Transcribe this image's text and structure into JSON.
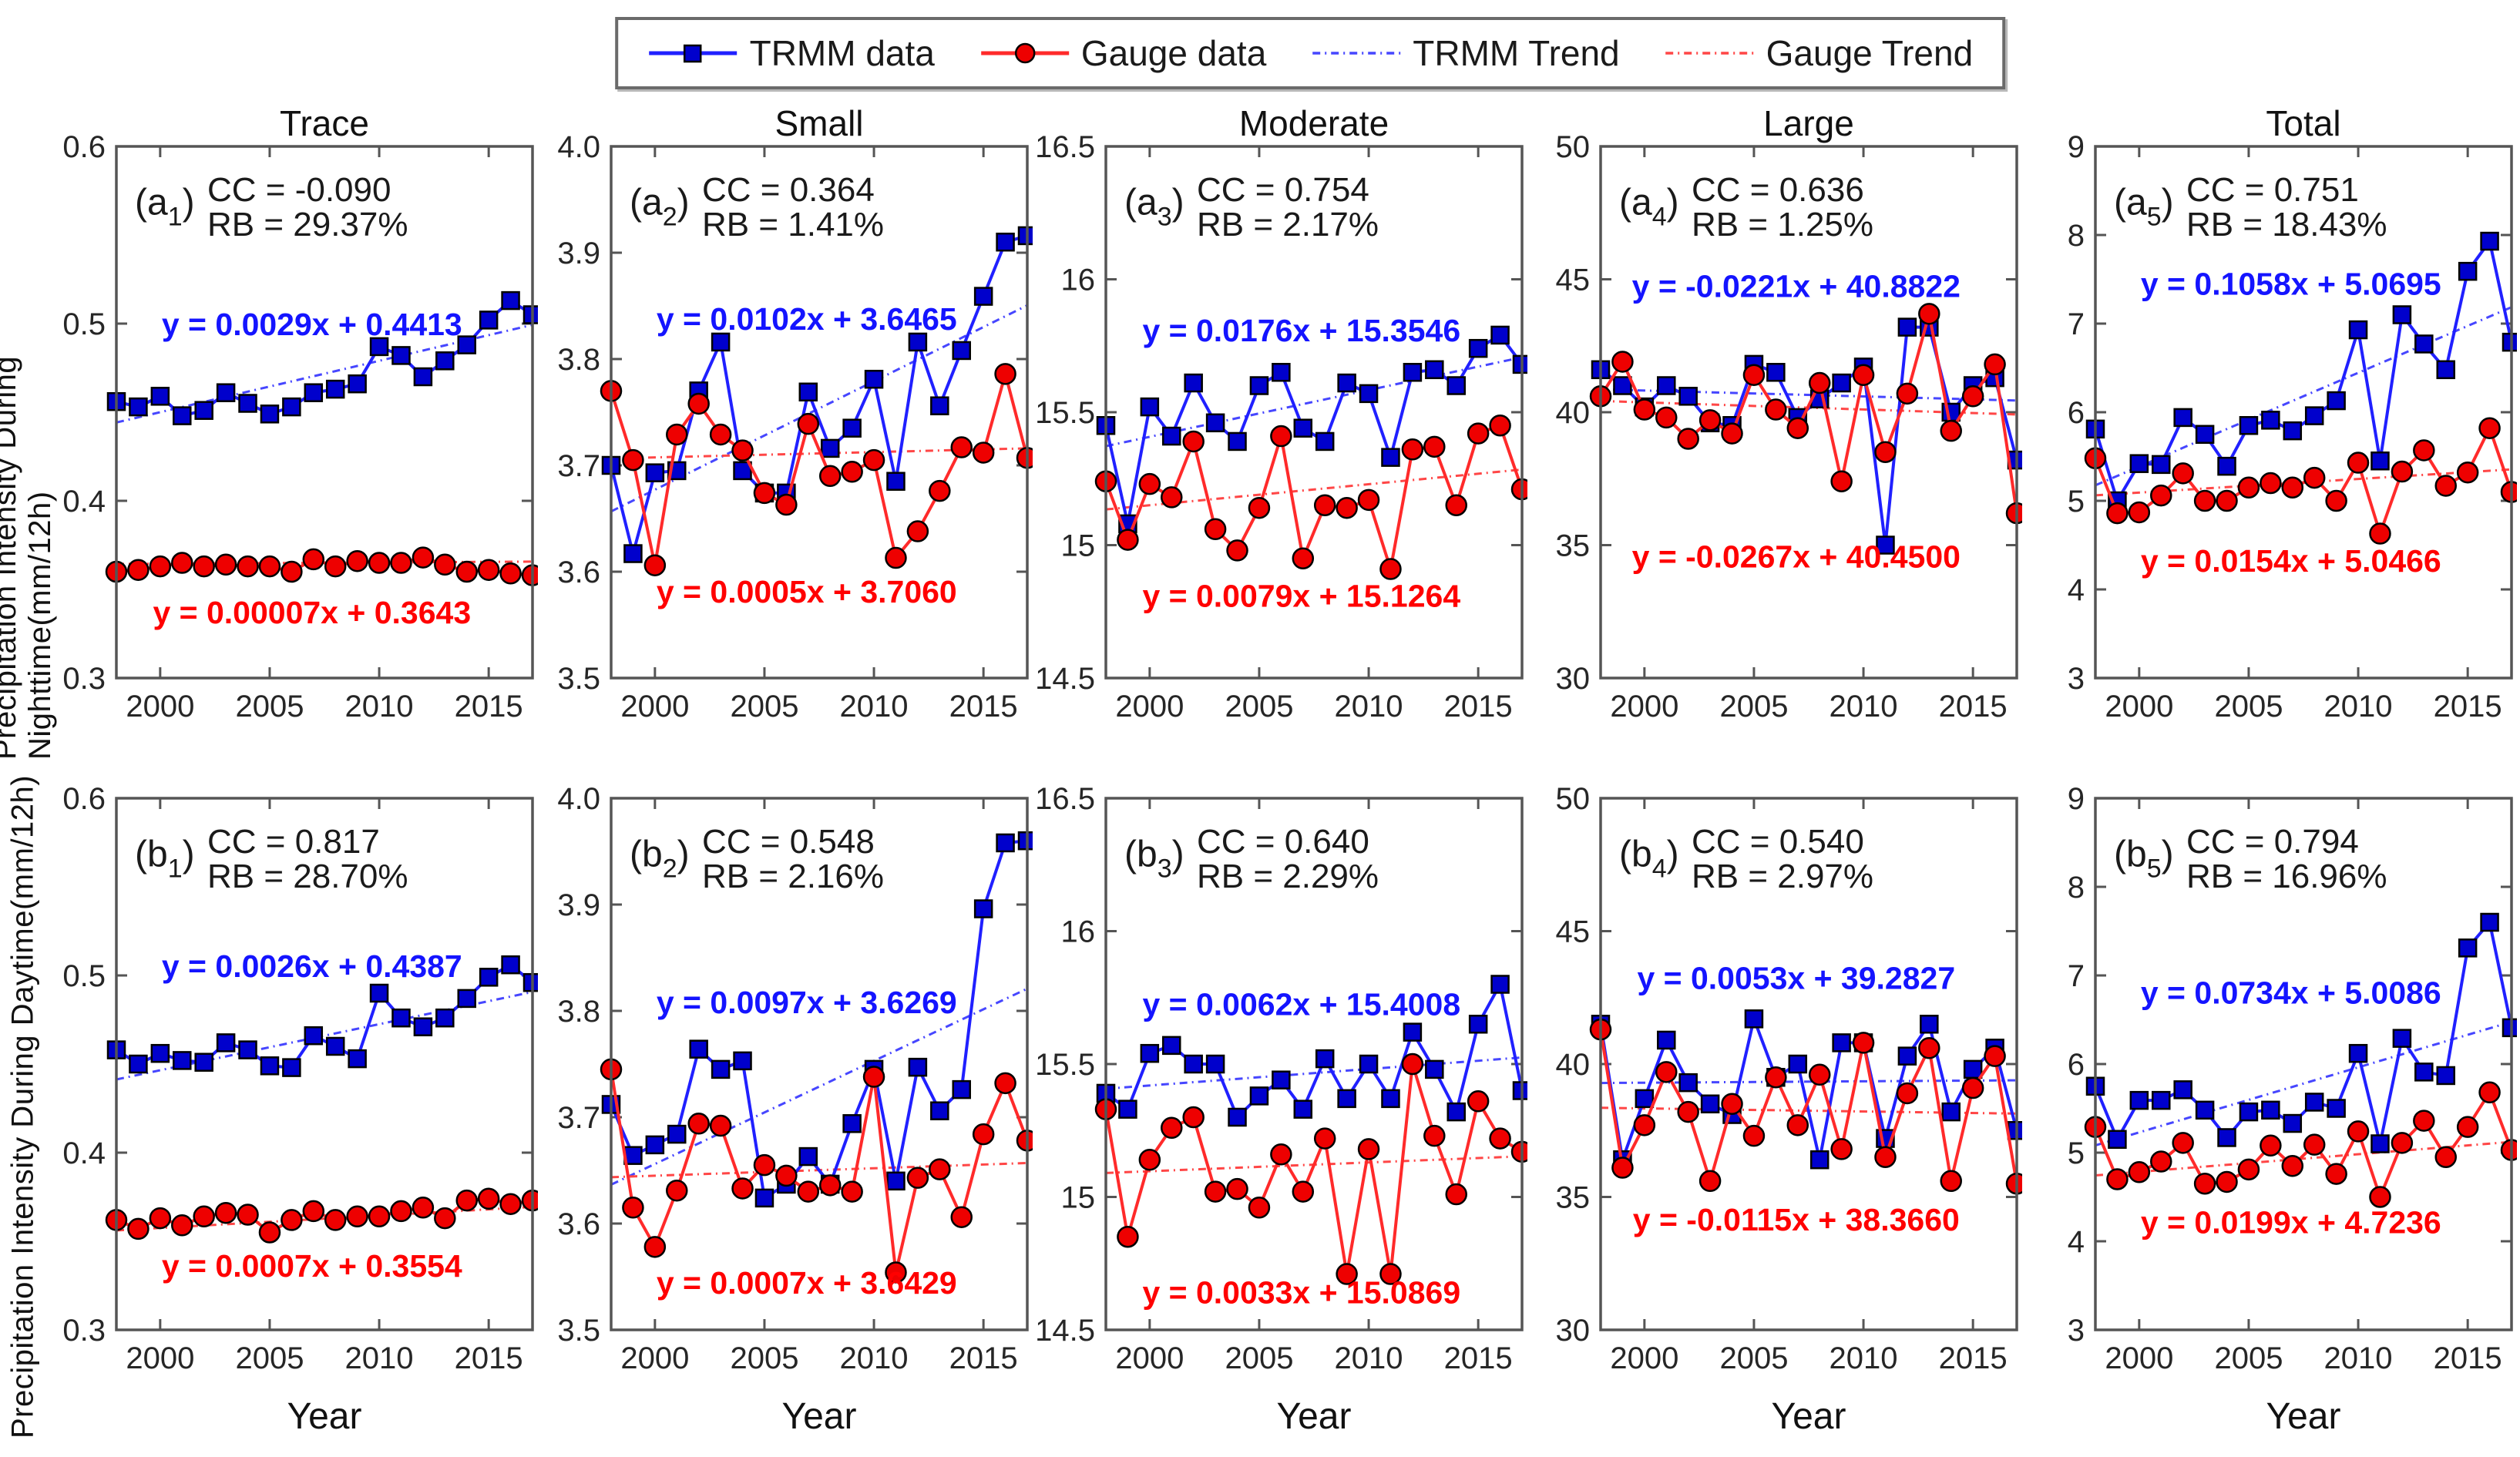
{
  "page": {
    "ylabel_nighttime": "Precipitation Intensity During Nighttime(mm/12h)",
    "ylabel_daytime": "Precipitation Intensity During Daytime(mm/12h)",
    "xlabel": "Year"
  },
  "colors": {
    "trmm_line": "#2020ff",
    "trmm_marker": "#0000cc",
    "trmm_trend": "#4646ff",
    "trmm_text": "#1414ff",
    "gauge_line": "#ff2a2a",
    "gauge_marker": "#ee0000",
    "gauge_trend": "#ff4646",
    "gauge_text": "#ff0000",
    "axis": "#555555",
    "tick_text": "#262626",
    "annotation_text": "#1a1a1a"
  },
  "legend": {
    "items": [
      {
        "label": "TRMM data",
        "type": "line-square"
      },
      {
        "label": "Gauge data",
        "type": "line-circle"
      },
      {
        "label": "TRMM Trend",
        "type": "trend-blue"
      },
      {
        "label": "Gauge Trend",
        "type": "trend-red"
      }
    ]
  },
  "chart_data": {
    "type": "line",
    "x": [
      1998,
      1999,
      2000,
      2001,
      2002,
      2003,
      2004,
      2005,
      2006,
      2007,
      2008,
      2009,
      2010,
      2011,
      2012,
      2013,
      2014,
      2015,
      2016,
      2017
    ],
    "xlim": [
      1998,
      2017
    ],
    "xticks": [
      "2000",
      "2005",
      "2010",
      "2015"
    ],
    "series_names": [
      "TRMM data",
      "Gauge data"
    ],
    "panels": [
      {
        "id": "a1",
        "row": 0,
        "col": 0,
        "title": "Trace",
        "tag": "a",
        "sub": "1",
        "cc": "CC = -0.090",
        "rb": "RB = 29.37%",
        "trmm_eq": "y = 0.0029x + 0.4413",
        "gauge_eq": "y = 0.00007x + 0.3643",
        "trmm_trend": {
          "slope": 0.0029,
          "intercept": 0.4413
        },
        "gauge_trend": {
          "slope": 7e-05,
          "intercept": 0.3643
        },
        "ylim": [
          0.3,
          0.6
        ],
        "yticks": [
          "0.3",
          "0.4",
          "0.5",
          "0.6"
        ],
        "eq_pos": {
          "trmm": 0.355,
          "gauge": 0.897
        },
        "trmm": [
          0.456,
          0.453,
          0.459,
          0.448,
          0.451,
          0.461,
          0.455,
          0.449,
          0.453,
          0.461,
          0.463,
          0.466,
          0.487,
          0.482,
          0.47,
          0.479,
          0.488,
          0.502,
          0.513,
          0.505
        ],
        "gauge": [
          0.36,
          0.361,
          0.363,
          0.365,
          0.363,
          0.364,
          0.363,
          0.363,
          0.36,
          0.367,
          0.363,
          0.366,
          0.365,
          0.365,
          0.368,
          0.364,
          0.36,
          0.361,
          0.359,
          0.358
        ]
      },
      {
        "id": "a2",
        "row": 0,
        "col": 1,
        "title": "Small",
        "tag": "a",
        "sub": "2",
        "cc": "CC = 0.364",
        "rb": "RB = 1.41%",
        "trmm_eq": "y = 0.0102x + 3.6465",
        "gauge_eq": "y = 0.0005x + 3.7060",
        "trmm_trend": {
          "slope": 0.0102,
          "intercept": 3.6465
        },
        "gauge_trend": {
          "slope": 0.0005,
          "intercept": 3.706
        },
        "ylim": [
          3.5,
          4.0
        ],
        "yticks": [
          "3.5",
          "3.6",
          "3.7",
          "3.8",
          "3.9",
          "4.0"
        ],
        "eq_pos": {
          "trmm": 0.345,
          "gauge": 0.858
        },
        "trmm": [
          3.7,
          3.617,
          3.693,
          3.695,
          3.77,
          3.816,
          3.695,
          3.674,
          3.674,
          3.769,
          3.716,
          3.735,
          3.781,
          3.685,
          3.816,
          3.756,
          3.808,
          3.859,
          3.91,
          3.916
        ],
        "gauge": [
          3.77,
          3.705,
          3.606,
          3.729,
          3.758,
          3.729,
          3.714,
          3.674,
          3.663,
          3.739,
          3.69,
          3.694,
          3.705,
          3.613,
          3.638,
          3.676,
          3.717,
          3.712,
          3.786,
          3.707
        ]
      },
      {
        "id": "a3",
        "row": 0,
        "col": 2,
        "title": "Moderate",
        "tag": "a",
        "sub": "3",
        "cc": "CC = 0.754",
        "rb": "RB = 2.17%",
        "trmm_eq": "y = 0.0176x + 15.3546",
        "gauge_eq": "y = 0.0079x + 15.1264",
        "trmm_trend": {
          "slope": 0.0176,
          "intercept": 15.3546
        },
        "gauge_trend": {
          "slope": 0.0079,
          "intercept": 15.1264
        },
        "ylim": [
          14.5,
          16.5
        ],
        "yticks": [
          "14.5",
          "15",
          "15.5",
          "16",
          "16.5"
        ],
        "eq_pos": {
          "trmm": 0.367,
          "gauge": 0.866
        },
        "trmm": [
          15.45,
          15.08,
          15.52,
          15.41,
          15.61,
          15.46,
          15.39,
          15.6,
          15.65,
          15.44,
          15.39,
          15.61,
          15.57,
          15.33,
          15.65,
          15.66,
          15.6,
          15.74,
          15.79,
          15.68
        ],
        "gauge": [
          15.24,
          15.02,
          15.23,
          15.18,
          15.39,
          15.06,
          14.98,
          15.14,
          15.41,
          14.95,
          15.15,
          15.14,
          15.17,
          14.91,
          15.36,
          15.37,
          15.15,
          15.42,
          15.45,
          15.21
        ]
      },
      {
        "id": "a4",
        "row": 0,
        "col": 3,
        "title": "Large",
        "tag": "a",
        "sub": "4",
        "cc": "CC = 0.636",
        "rb": "RB = 1.25%",
        "trmm_eq": "y = -0.0221x + 40.8822",
        "gauge_eq": "y = -0.0267x + 40.4500",
        "trmm_trend": {
          "slope": -0.0221,
          "intercept": 40.8822
        },
        "gauge_trend": {
          "slope": -0.0267,
          "intercept": 40.45
        },
        "ylim": [
          30,
          50
        ],
        "yticks": [
          "30",
          "35",
          "40",
          "45",
          "50"
        ],
        "eq_pos": {
          "trmm": 0.283,
          "gauge": 0.792
        },
        "trmm": [
          41.6,
          41.0,
          40.2,
          41.0,
          40.6,
          39.6,
          39.5,
          41.8,
          41.5,
          39.8,
          40.5,
          41.1,
          41.7,
          35.0,
          43.2,
          43.2,
          40.0,
          41.0,
          41.3,
          38.2
        ],
        "gauge": [
          40.6,
          41.9,
          40.1,
          39.8,
          39.0,
          39.7,
          39.2,
          41.4,
          40.1,
          39.4,
          41.1,
          37.4,
          41.4,
          38.5,
          40.7,
          43.7,
          39.3,
          40.6,
          41.8,
          36.2
        ]
      },
      {
        "id": "a5",
        "row": 0,
        "col": 4,
        "title": "Total",
        "tag": "a",
        "sub": "5",
        "cc": "CC = 0.751",
        "rb": "RB = 18.43%",
        "trmm_eq": "y = 0.1058x + 5.0695",
        "gauge_eq": "y = 0.0154x + 5.0466",
        "trmm_trend": {
          "slope": 0.1058,
          "intercept": 5.0695
        },
        "gauge_trend": {
          "slope": 0.0154,
          "intercept": 5.0466
        },
        "ylim": [
          3,
          9
        ],
        "yticks": [
          "3",
          "4",
          "5",
          "6",
          "7",
          "8",
          "9"
        ],
        "eq_pos": {
          "trmm": 0.279,
          "gauge": 0.8
        },
        "trmm": [
          5.81,
          5.0,
          5.42,
          5.41,
          5.94,
          5.75,
          5.39,
          5.85,
          5.91,
          5.79,
          5.96,
          6.13,
          6.93,
          5.45,
          7.1,
          6.77,
          6.48,
          7.59,
          7.93,
          6.79
        ],
        "gauge": [
          5.48,
          4.86,
          4.87,
          5.06,
          5.31,
          5.0,
          5.0,
          5.15,
          5.2,
          5.15,
          5.26,
          5.0,
          5.43,
          4.63,
          5.33,
          5.57,
          5.17,
          5.32,
          5.82,
          5.1
        ]
      },
      {
        "id": "b1",
        "row": 1,
        "col": 0,
        "title": "",
        "tag": "b",
        "sub": "1",
        "cc": "CC = 0.817",
        "rb": "RB = 28.70%",
        "trmm_eq": "y = 0.0026x + 0.4387",
        "gauge_eq": "y = 0.0007x + 0.3554",
        "trmm_trend": {
          "slope": 0.0026,
          "intercept": 0.4387
        },
        "gauge_trend": {
          "slope": 0.0007,
          "intercept": 0.3554
        },
        "ylim": [
          0.3,
          0.6
        ],
        "yticks": [
          "0.3",
          "0.4",
          "0.5",
          "0.6"
        ],
        "eq_pos": {
          "trmm": 0.336,
          "gauge": 0.9
        },
        "trmm": [
          0.458,
          0.45,
          0.456,
          0.452,
          0.451,
          0.462,
          0.458,
          0.449,
          0.448,
          0.466,
          0.46,
          0.453,
          0.49,
          0.476,
          0.471,
          0.476,
          0.487,
          0.499,
          0.506,
          0.496
        ],
        "gauge": [
          0.362,
          0.357,
          0.363,
          0.359,
          0.364,
          0.366,
          0.365,
          0.355,
          0.362,
          0.367,
          0.362,
          0.364,
          0.364,
          0.367,
          0.369,
          0.363,
          0.373,
          0.374,
          0.371,
          0.373
        ]
      },
      {
        "id": "b2",
        "row": 1,
        "col": 1,
        "title": "",
        "tag": "b",
        "sub": "2",
        "cc": "CC = 0.548",
        "rb": "RB = 2.16%",
        "trmm_eq": "y = 0.0097x + 3.6269",
        "gauge_eq": "y = 0.0007x + 3.6429",
        "trmm_trend": {
          "slope": 0.0097,
          "intercept": 3.6269
        },
        "gauge_trend": {
          "slope": 0.0007,
          "intercept": 3.6429
        },
        "ylim": [
          3.5,
          4.0
        ],
        "yticks": [
          "3.5",
          "3.6",
          "3.7",
          "3.8",
          "3.9",
          "4.0"
        ],
        "eq_pos": {
          "trmm": 0.404,
          "gauge": 0.932
        },
        "trmm": [
          3.712,
          3.664,
          3.674,
          3.684,
          3.764,
          3.745,
          3.753,
          3.624,
          3.637,
          3.663,
          3.637,
          3.694,
          3.745,
          3.64,
          3.747,
          3.706,
          3.726,
          3.896,
          3.958,
          3.96
        ],
        "gauge": [
          3.745,
          3.615,
          3.578,
          3.631,
          3.694,
          3.692,
          3.633,
          3.655,
          3.645,
          3.63,
          3.636,
          3.63,
          3.738,
          3.554,
          3.643,
          3.651,
          3.606,
          3.684,
          3.732,
          3.678
        ]
      },
      {
        "id": "b3",
        "row": 1,
        "col": 2,
        "title": "",
        "tag": "b",
        "sub": "3",
        "cc": "CC = 0.640",
        "rb": "RB = 2.29%",
        "trmm_eq": "y = 0.0062x + 15.4008",
        "gauge_eq": "y = 0.0033x + 15.0869",
        "trmm_trend": {
          "slope": 0.0062,
          "intercept": 15.4008
        },
        "gauge_trend": {
          "slope": 0.0033,
          "intercept": 15.0869
        },
        "ylim": [
          14.5,
          16.5
        ],
        "yticks": [
          "14.5",
          "15",
          "15.5",
          "16",
          "16.5"
        ],
        "eq_pos": {
          "trmm": 0.408,
          "gauge": 0.95
        },
        "trmm": [
          15.39,
          15.33,
          15.54,
          15.57,
          15.5,
          15.5,
          15.3,
          15.38,
          15.44,
          15.33,
          15.52,
          15.37,
          15.5,
          15.37,
          15.62,
          15.48,
          15.32,
          15.65,
          15.8,
          15.4
        ],
        "gauge": [
          15.33,
          14.85,
          15.14,
          15.26,
          15.3,
          15.02,
          15.03,
          14.96,
          15.16,
          15.02,
          15.22,
          14.71,
          15.18,
          14.71,
          15.5,
          15.23,
          15.01,
          15.36,
          15.22,
          15.17
        ]
      },
      {
        "id": "b4",
        "row": 1,
        "col": 3,
        "title": "",
        "tag": "b",
        "sub": "4",
        "cc": "CC = 0.540",
        "rb": "RB = 2.97%",
        "trmm_eq": "y = 0.0053x + 39.2827",
        "gauge_eq": "y = -0.0115x + 38.3660",
        "trmm_trend": {
          "slope": 0.0053,
          "intercept": 39.2827
        },
        "gauge_trend": {
          "slope": -0.0115,
          "intercept": 38.366
        },
        "ylim": [
          30,
          50
        ],
        "yticks": [
          "30",
          "35",
          "40",
          "45",
          "50"
        ],
        "eq_pos": {
          "trmm": 0.359,
          "gauge": 0.813
        },
        "trmm": [
          41.5,
          36.4,
          38.7,
          40.9,
          39.3,
          38.5,
          38.1,
          41.7,
          39.5,
          40.0,
          36.4,
          40.8,
          40.8,
          37.2,
          40.3,
          41.5,
          38.2,
          39.8,
          40.6,
          37.5
        ],
        "gauge": [
          41.3,
          36.1,
          37.7,
          39.7,
          38.2,
          35.6,
          38.5,
          37.3,
          39.5,
          37.7,
          39.6,
          36.8,
          40.8,
          36.5,
          38.9,
          40.6,
          35.6,
          39.1,
          40.3,
          35.5
        ]
      },
      {
        "id": "b5",
        "row": 1,
        "col": 4,
        "title": "",
        "tag": "b",
        "sub": "5",
        "cc": "CC = 0.794",
        "rb": "RB = 16.96%",
        "trmm_eq": "y = 0.0734x + 5.0086",
        "gauge_eq": "y = 0.0199x + 4.7236",
        "trmm_trend": {
          "slope": 0.0734,
          "intercept": 5.0086
        },
        "gauge_trend": {
          "slope": 0.0199,
          "intercept": 4.7236
        },
        "ylim": [
          3,
          9
        ],
        "yticks": [
          "3",
          "4",
          "5",
          "6",
          "7",
          "8",
          "9"
        ],
        "eq_pos": {
          "trmm": 0.386,
          "gauge": 0.818
        },
        "trmm": [
          5.75,
          5.15,
          5.59,
          5.59,
          5.71,
          5.48,
          5.17,
          5.46,
          5.48,
          5.33,
          5.57,
          5.5,
          6.12,
          5.1,
          6.29,
          5.91,
          5.87,
          7.31,
          7.6,
          6.41
        ],
        "gauge": [
          5.29,
          4.7,
          4.78,
          4.9,
          5.11,
          4.65,
          4.67,
          4.81,
          5.08,
          4.85,
          5.09,
          4.76,
          5.24,
          4.5,
          5.11,
          5.36,
          4.95,
          5.29,
          5.68,
          5.03
        ]
      }
    ]
  }
}
